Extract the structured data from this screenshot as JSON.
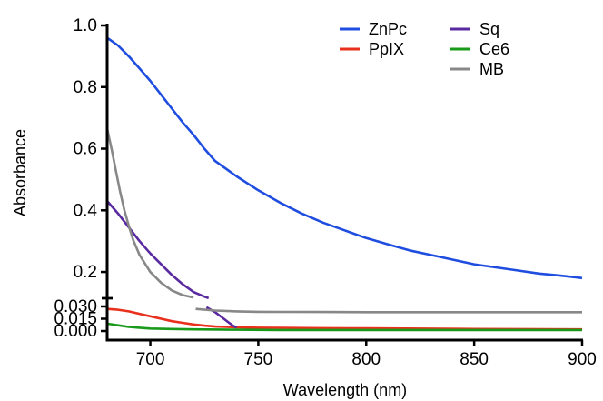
{
  "chart_data": {
    "type": "line",
    "xlabel": "Wavelength (nm)",
    "ylabel": "Absorbance",
    "xlim": [
      680,
      900
    ],
    "x_ticks": [
      "700",
      "750",
      "800",
      "850",
      "900"
    ],
    "y_axis_broken": true,
    "y_segments": [
      {
        "range": [
          0.0,
          0.03
        ],
        "ticks": [
          "0.000",
          "0.015",
          "0.030"
        ]
      },
      {
        "range": [
          0.15,
          1.0
        ],
        "ticks": [
          "0.2",
          "0.4",
          "0.6",
          "0.8",
          "1.0"
        ]
      }
    ],
    "legend": {
      "placement": "top-right",
      "columns": 2
    },
    "grid": false,
    "series": [
      {
        "name": "ZnPc",
        "color": "#1f4de0",
        "x": [
          680,
          685,
          690,
          695,
          700,
          705,
          710,
          715,
          720,
          725,
          730,
          740,
          750,
          760,
          770,
          780,
          790,
          800,
          810,
          820,
          830,
          840,
          850,
          860,
          870,
          880,
          890,
          900
        ],
        "y": [
          0.96,
          0.935,
          0.9,
          0.86,
          0.82,
          0.775,
          0.73,
          0.685,
          0.645,
          0.6,
          0.56,
          0.51,
          0.465,
          0.425,
          0.39,
          0.36,
          0.335,
          0.31,
          0.29,
          0.27,
          0.255,
          0.24,
          0.225,
          0.215,
          0.205,
          0.195,
          0.188,
          0.18
        ]
      },
      {
        "name": "PpIX",
        "color": "#e8301c",
        "x": [
          680,
          685,
          690,
          695,
          700,
          705,
          710,
          715,
          720,
          725,
          730,
          735,
          740,
          750,
          760,
          780,
          800,
          850,
          900
        ],
        "y": [
          0.027,
          0.026,
          0.024,
          0.021,
          0.018,
          0.015,
          0.012,
          0.01,
          0.008,
          0.0065,
          0.0055,
          0.005,
          0.0045,
          0.004,
          0.0038,
          0.0035,
          0.0032,
          0.0025,
          0.002
        ]
      },
      {
        "name": "Sq",
        "color": "#5a2aa0",
        "x": [
          680,
          685,
          690,
          695,
          700,
          705,
          710,
          715,
          720,
          725,
          727
        ],
        "y": [
          0.43,
          0.39,
          0.345,
          0.3,
          0.26,
          0.225,
          0.19,
          0.16,
          0.135,
          0.12,
          0.115
        ]
      },
      {
        "name": "Sq",
        "color": "#5a2aa0",
        "x": [
          726,
          728,
          730,
          732,
          734,
          736,
          738,
          740
        ],
        "y": [
          0.029,
          0.026,
          0.023,
          0.019,
          0.015,
          0.011,
          0.007,
          0.004
        ]
      },
      {
        "name": "Ce6",
        "color": "#1a9a1a",
        "x": [
          680,
          685,
          690,
          695,
          700,
          710,
          720,
          740,
          760,
          800,
          850,
          900
        ],
        "y": [
          0.009,
          0.007,
          0.005,
          0.004,
          0.003,
          0.0025,
          0.002,
          0.0015,
          0.0012,
          0.0012,
          0.0012,
          0.0012
        ]
      },
      {
        "name": "MB",
        "color": "#888888",
        "x": [
          680,
          682,
          684,
          686,
          688,
          690,
          692,
          695,
          700,
          705,
          710,
          715,
          720
        ],
        "y": [
          0.665,
          0.6,
          0.53,
          0.46,
          0.4,
          0.35,
          0.305,
          0.255,
          0.2,
          0.165,
          0.14,
          0.125,
          0.117
        ]
      },
      {
        "name": "MB",
        "color": "#888888",
        "x": [
          721,
          730,
          740,
          750,
          760,
          780,
          800,
          850,
          900
        ],
        "y": [
          0.027,
          0.025,
          0.024,
          0.0235,
          0.0233,
          0.0232,
          0.023,
          0.023,
          0.023
        ]
      }
    ],
    "legend_entries": [
      {
        "name": "ZnPc",
        "color": "#1f4de0"
      },
      {
        "name": "PpIX",
        "color": "#e8301c"
      },
      {
        "name": "Sq",
        "color": "#5a2aa0"
      },
      {
        "name": "Ce6",
        "color": "#1a9a1a"
      },
      {
        "name": "MB",
        "color": "#888888"
      }
    ]
  }
}
